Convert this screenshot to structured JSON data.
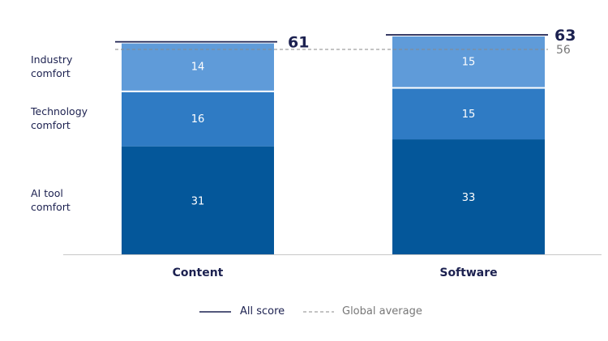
{
  "chart_data": {
    "type": "bar",
    "stacked": true,
    "categories": [
      "Content",
      "Software"
    ],
    "series": [
      {
        "name": "AI tool comfort",
        "values": [
          31,
          33
        ],
        "color": "#04579a"
      },
      {
        "name": "Technology comfort",
        "values": [
          16,
          15
        ],
        "color": "#2f7bc4"
      },
      {
        "name": "Industry comfort",
        "values": [
          14,
          15
        ],
        "color": "#5f9bd9"
      }
    ],
    "totals": {
      "name": "All score",
      "values": [
        61,
        63
      ],
      "color": "#1c2150"
    },
    "reference": {
      "name": "Global average",
      "value": 56,
      "color": "#8a8a8a"
    },
    "row_labels": [
      "Industry\ncomfort",
      "Technology\ncomfort",
      "AI tool\ncomfort"
    ],
    "legend": [
      "All score",
      "Global average"
    ],
    "legend_position": "bottom",
    "grid": false,
    "ylim": [
      0,
      63
    ]
  }
}
